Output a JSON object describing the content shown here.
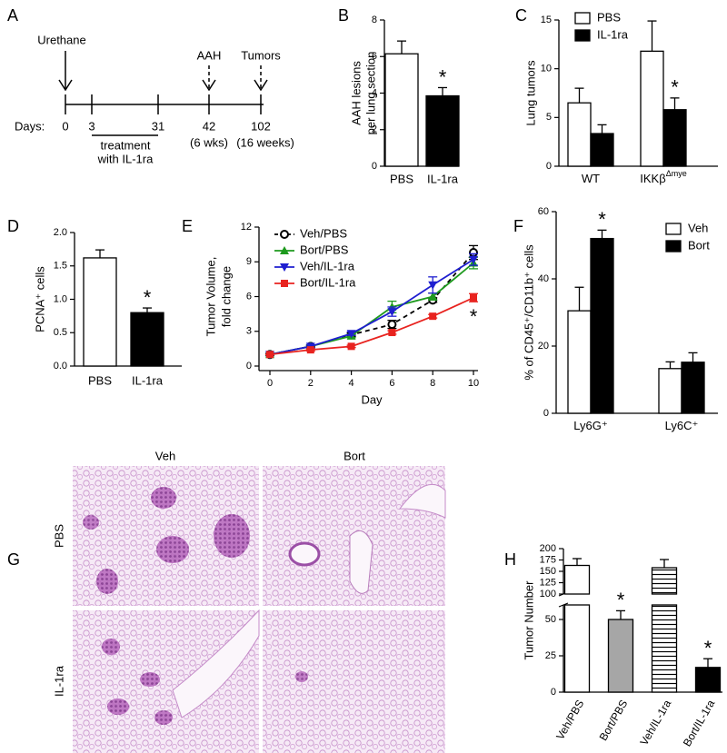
{
  "timeline": {
    "panel": "A",
    "events": [
      "Urethane",
      "AAH",
      "Tumors"
    ],
    "axis_label": "Days:",
    "days": [
      "0",
      "3",
      "31",
      "42",
      "102"
    ],
    "treatment": [
      "treatment",
      "with IL-1ra"
    ],
    "notes": [
      "(6 wks)",
      "(16 weeks)"
    ]
  },
  "chart_data": [
    {
      "panel": "B",
      "type": "bar",
      "ylabel": [
        "AAH lesions",
        "per lung section"
      ],
      "categories": [
        "PBS",
        "IL-1ra"
      ],
      "values": [
        6.15,
        3.85
      ],
      "errors": [
        0.7,
        0.45
      ],
      "colors": [
        "#ffffff",
        "#000000"
      ],
      "annotations": [
        null,
        "*"
      ],
      "ylim": [
        0,
        8
      ],
      "yticks": [
        0,
        2,
        4,
        6,
        8
      ]
    },
    {
      "panel": "C",
      "type": "grouped_bar",
      "ylabel": "Lung tumors",
      "categories": [
        "WT",
        "IKKβ"
      ],
      "category_superscripts": [
        null,
        "Δmye"
      ],
      "series": [
        {
          "name": "PBS",
          "color": "#ffffff",
          "values": [
            6.5,
            11.8
          ],
          "errors": [
            1.5,
            3.1
          ],
          "annotations": [
            null,
            null
          ]
        },
        {
          "name": "IL-1ra",
          "color": "#000000",
          "values": [
            3.35,
            5.8
          ],
          "errors": [
            0.9,
            1.2
          ],
          "annotations": [
            null,
            "*"
          ]
        }
      ],
      "ylim": [
        0,
        15
      ],
      "yticks": [
        0,
        5,
        10,
        15
      ],
      "legend": "top-left"
    },
    {
      "panel": "D",
      "type": "bar",
      "ylabel": "PCNA⁺ cells",
      "categories": [
        "PBS",
        "IL-1ra"
      ],
      "values": [
        1.62,
        0.8
      ],
      "errors": [
        0.12,
        0.07
      ],
      "colors": [
        "#ffffff",
        "#000000"
      ],
      "annotations": [
        null,
        "*"
      ],
      "ylim": [
        0,
        2
      ],
      "yticks": [
        {
          "value": 0,
          "label": "0.0"
        },
        {
          "value": 0.5,
          "label": "0.5"
        },
        {
          "value": 1,
          "label": "1.0"
        },
        {
          "value": 1.5,
          "label": "1.5"
        },
        {
          "value": 2,
          "label": "2.0"
        }
      ]
    },
    {
      "panel": "E",
      "type": "line",
      "ylabel": [
        "Tumor Volume,",
        "fold change"
      ],
      "xlabel": "Day",
      "x": [
        0,
        2,
        4,
        6,
        8,
        10
      ],
      "xlim": [
        0,
        10
      ],
      "xticks": [
        0,
        2,
        4,
        6,
        8,
        10
      ],
      "ylim": [
        0,
        12
      ],
      "yticks": [
        0,
        3,
        6,
        9,
        12
      ],
      "legend": "top-left",
      "series": [
        {
          "name": "Veh/PBS",
          "color": "#000000",
          "marker": "open-circle",
          "dashed": true,
          "values": [
            1,
            1.7,
            2.7,
            3.6,
            5.7,
            9.8
          ],
          "errors": [
            0,
            0.1,
            0.15,
            0.35,
            0.2,
            0.6
          ],
          "annotations": [
            null,
            null,
            null,
            null,
            null,
            null
          ]
        },
        {
          "name": "Bort/PBS",
          "color": "#1e9a1e",
          "marker": "triangle",
          "dashed": false,
          "values": [
            1,
            1.7,
            2.6,
            5.1,
            6.0,
            8.9
          ],
          "errors": [
            0,
            0.1,
            0.15,
            0.5,
            0.3,
            0.5
          ],
          "annotations": [
            null,
            null,
            null,
            null,
            null,
            null
          ]
        },
        {
          "name": "Veh/IL-1ra",
          "color": "#1f1fd0",
          "marker": "triangle-down",
          "dashed": false,
          "values": [
            1,
            1.7,
            2.8,
            4.7,
            7.0,
            9.2
          ],
          "errors": [
            0,
            0.1,
            0.15,
            0.4,
            0.7,
            0.5
          ],
          "annotations": [
            null,
            null,
            null,
            null,
            null,
            null
          ]
        },
        {
          "name": "Bort/IL-1ra",
          "color": "#e8231f",
          "marker": "square",
          "dashed": false,
          "values": [
            1,
            1.4,
            1.7,
            2.9,
            4.3,
            5.9
          ],
          "errors": [
            0,
            0.1,
            0.1,
            0.15,
            0.15,
            0.35
          ],
          "annotations": [
            null,
            null,
            null,
            null,
            null,
            "*"
          ]
        }
      ]
    },
    {
      "panel": "F",
      "type": "grouped_bar",
      "ylabel": "% of CD45⁺/CD11b⁺ cells",
      "categories": [
        "Ly6G⁺",
        "Ly6C⁺"
      ],
      "series": [
        {
          "name": "Veh",
          "color": "#ffffff",
          "values": [
            30.5,
            13.3
          ],
          "errors": [
            7,
            2
          ],
          "annotations": [
            null,
            null
          ]
        },
        {
          "name": "Bort",
          "color": "#000000",
          "values": [
            52,
            15.2
          ],
          "errors": [
            2.5,
            2.8
          ],
          "annotations": [
            "*",
            null
          ]
        }
      ],
      "ylim": [
        0,
        60
      ],
      "yticks": [
        0,
        20,
        40,
        60
      ],
      "legend": "top-right"
    },
    {
      "panel": "H",
      "type": "broken_bar",
      "ylabel": "Tumor Number",
      "categories": [
        "Veh/PBS",
        "Bort/PBS",
        "Veh/IL-1ra",
        "Bort/IL-1ra"
      ],
      "values": [
        163,
        50,
        158,
        17
      ],
      "errors": [
        15,
        6,
        18,
        6
      ],
      "colors": [
        "#ffffff",
        "#a6a6a6",
        "#ffffff",
        "#000000"
      ],
      "hatched": [
        false,
        false,
        true,
        false
      ],
      "annotations": [
        null,
        "*",
        null,
        "*"
      ],
      "ylim_segments": [
        [
          0,
          60
        ],
        [
          100,
          200
        ]
      ],
      "yticks": [
        0,
        25,
        50,
        100,
        125,
        150,
        175,
        200
      ]
    }
  ],
  "images": {
    "panel": "G",
    "columns": [
      "Veh",
      "Bort"
    ],
    "rows": [
      "PBS",
      "IL-1ra"
    ]
  }
}
